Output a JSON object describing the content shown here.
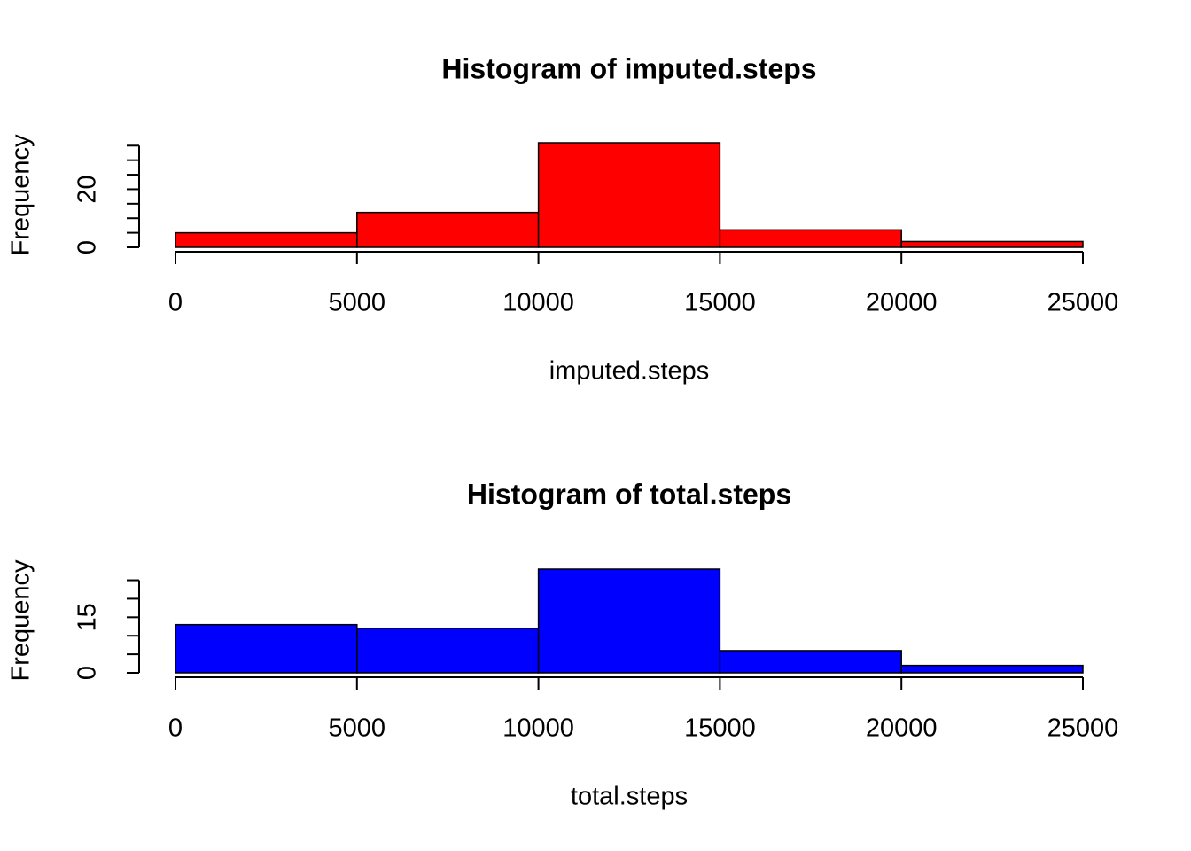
{
  "chart_data": [
    {
      "type": "histogram",
      "title": "Histogram of imputed.steps",
      "xlabel": "imputed.steps",
      "ylabel": "Frequency",
      "bins": [
        0,
        5000,
        10000,
        15000,
        20000,
        25000
      ],
      "counts": [
        5,
        12,
        36,
        6,
        2
      ],
      "color": "#ff0000",
      "xlim": [
        0,
        25000
      ],
      "xticks": [
        0,
        5000,
        10000,
        15000,
        20000,
        25000
      ],
      "ylim": [
        0,
        36
      ],
      "yticks": [
        0,
        20
      ],
      "minor_yticks": [
        5,
        10,
        15,
        25,
        30,
        35
      ]
    },
    {
      "type": "histogram",
      "title": "Histogram of total.steps",
      "xlabel": "total.steps",
      "ylabel": "Frequency",
      "bins": [
        0,
        5000,
        10000,
        15000,
        20000,
        25000
      ],
      "counts": [
        13,
        12,
        28,
        6,
        2
      ],
      "color": "#0000ff",
      "xlim": [
        0,
        25000
      ],
      "xticks": [
        0,
        5000,
        10000,
        15000,
        20000,
        25000
      ],
      "ylim": [
        0,
        28
      ],
      "yticks": [
        0,
        15
      ],
      "minor_yticks": [
        5,
        10,
        20,
        25
      ]
    }
  ]
}
